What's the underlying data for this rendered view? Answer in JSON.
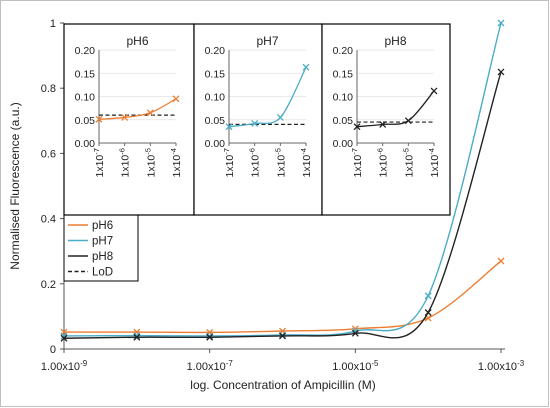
{
  "chart_data": [
    {
      "type": "line",
      "title": "",
      "xlabel": "log. Concentration of Ampicillin (M)",
      "ylabel": "Normalised Fluorescence (a.u.)",
      "x_scale": "log",
      "xlim": [
        1e-09,
        0.001
      ],
      "ylim": [
        0,
        1
      ],
      "y_ticks": [
        "0",
        "0.2",
        "0.4",
        "0.6",
        "0.8",
        "1"
      ],
      "x_ticks": [
        "1.00x10-9",
        "1.00x10-7",
        "1.00x10-5",
        "1.00x10-3"
      ],
      "x_tick_values": [
        1e-09,
        1e-07,
        1e-05,
        0.001
      ],
      "x": [
        1e-09,
        1e-08,
        1e-07,
        1e-06,
        1e-05,
        0.0001,
        0.001
      ],
      "series": [
        {
          "name": "pH6",
          "color": "#ED7D31",
          "values": [
            0.052,
            0.052,
            0.051,
            0.055,
            0.062,
            0.095,
            0.27
          ]
        },
        {
          "name": "pH7",
          "color": "#4BACC6",
          "values": [
            0.04,
            0.041,
            0.04,
            0.043,
            0.055,
            0.163,
            1.0
          ]
        },
        {
          "name": "pH8",
          "color": "#222222",
          "values": [
            0.033,
            0.036,
            0.036,
            0.04,
            0.048,
            0.112,
            0.85
          ]
        }
      ],
      "legend": {
        "position": "left",
        "entries": [
          {
            "label": "pH6",
            "color": "#ED7D31",
            "style": "solid"
          },
          {
            "label": "pH7",
            "color": "#4BACC6",
            "style": "solid"
          },
          {
            "label": "pH8",
            "color": "#222222",
            "style": "solid"
          },
          {
            "label": "LoD",
            "color": "#222222",
            "style": "dashed"
          }
        ]
      },
      "grid": false
    },
    {
      "type": "line",
      "title": "pH6",
      "x_scale": "log",
      "xlim": [
        1e-07,
        0.0001
      ],
      "ylim": [
        0,
        0.2
      ],
      "y_ticks": [
        "0.00",
        "0.05",
        "0.10",
        "0.15",
        "0.20"
      ],
      "x_ticks": [
        "1x10-7",
        "1x10-6",
        "1x10-5",
        "1x10-4"
      ],
      "x": [
        1e-07,
        1e-06,
        1e-05,
        0.0001
      ],
      "series": [
        {
          "name": "pH6",
          "color": "#ED7D31",
          "values": [
            0.051,
            0.055,
            0.065,
            0.095
          ]
        }
      ],
      "lod": 0.06
    },
    {
      "type": "line",
      "title": "pH7",
      "x_scale": "log",
      "xlim": [
        1e-07,
        0.0001
      ],
      "ylim": [
        0,
        0.2
      ],
      "y_ticks": [
        "0.00",
        "0.05",
        "0.10",
        "0.15",
        "0.20"
      ],
      "x_ticks": [
        "1x10-7",
        "1x10-6",
        "1x10-5",
        "1x10-4"
      ],
      "x": [
        1e-07,
        1e-06,
        1e-05,
        0.0001
      ],
      "series": [
        {
          "name": "pH7",
          "color": "#4BACC6",
          "values": [
            0.035,
            0.042,
            0.055,
            0.163
          ]
        }
      ],
      "lod": 0.04
    },
    {
      "type": "line",
      "title": "pH8",
      "x_scale": "log",
      "xlim": [
        1e-07,
        0.0001
      ],
      "ylim": [
        0,
        0.2
      ],
      "y_ticks": [
        "0.00",
        "0.05",
        "0.10",
        "0.15",
        "0.20"
      ],
      "x_ticks": [
        "1x10-7",
        "1x10-6",
        "1x10-5",
        "1x10-4"
      ],
      "x": [
        1e-07,
        1e-06,
        1e-05,
        0.0001
      ],
      "series": [
        {
          "name": "pH8",
          "color": "#222222",
          "values": [
            0.035,
            0.04,
            0.048,
            0.112
          ]
        }
      ],
      "lod": 0.045
    }
  ]
}
